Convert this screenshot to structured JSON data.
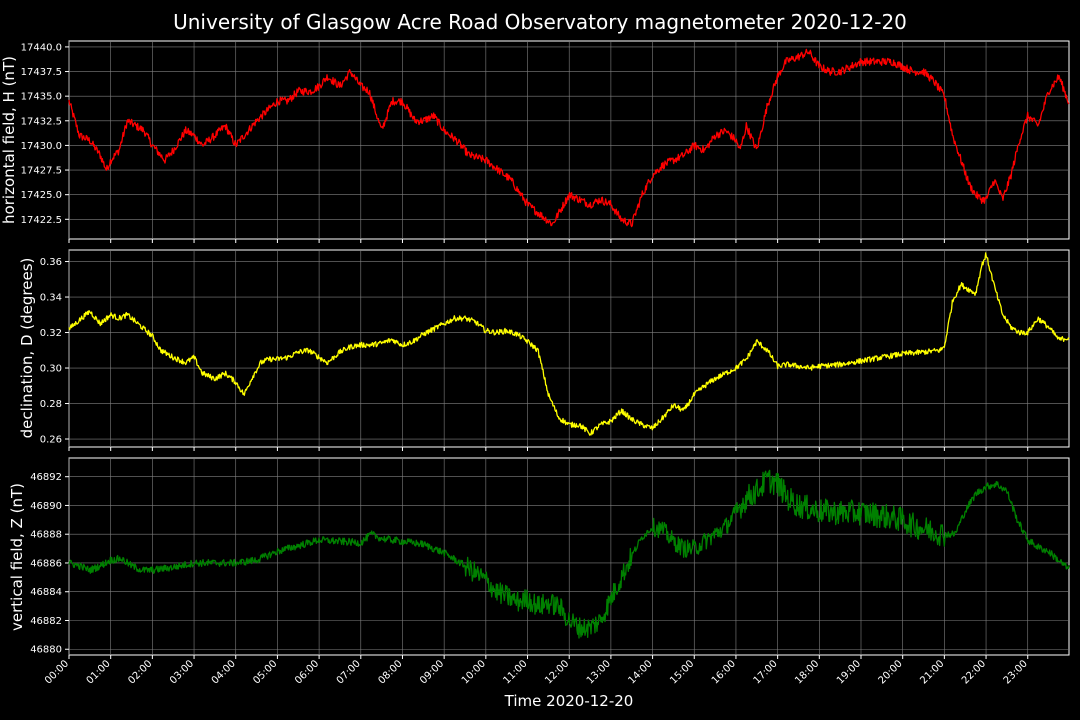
{
  "figure": {
    "title": "University of Glasgow Acre Road Observatory magnetometer 2020-12-20",
    "xlabel": "Time 2020-12-20",
    "background": "#000000",
    "foreground": "#ffffff",
    "grid_color": "#808080"
  },
  "chart_data": [
    {
      "type": "line",
      "name": "horizontal",
      "ylabel": "horizontal field, H (nT)",
      "color": "#ff0000",
      "ylim": [
        17420.5,
        17440.6
      ],
      "yticks": [
        17422.5,
        17425.0,
        17427.5,
        17430.0,
        17432.5,
        17435.0,
        17437.5,
        17440.0
      ],
      "ytick_labels": [
        "17422.5",
        "17425.0",
        "17427.5",
        "17430.0",
        "17432.5",
        "17435.0",
        "17437.5",
        "17440.0"
      ],
      "noise": 0.4,
      "x": [
        0.0,
        0.25,
        0.5,
        0.75,
        0.9,
        1.0,
        1.2,
        1.4,
        1.6,
        1.8,
        2.0,
        2.3,
        2.5,
        2.8,
        3.0,
        3.2,
        3.5,
        3.75,
        4.0,
        4.3,
        4.5,
        4.75,
        5.0,
        5.25,
        5.5,
        5.8,
        6.0,
        6.2,
        6.5,
        6.75,
        7.0,
        7.2,
        7.5,
        7.75,
        8.0,
        8.3,
        8.5,
        8.75,
        9.0,
        9.3,
        9.6,
        10.0,
        10.3,
        10.6,
        11.0,
        11.3,
        11.6,
        11.8,
        12.0,
        12.25,
        12.5,
        12.75,
        13.0,
        13.25,
        13.5,
        13.75,
        14.0,
        14.25,
        14.5,
        14.75,
        15.0,
        15.25,
        15.5,
        15.75,
        16.0,
        16.1,
        16.25,
        16.5,
        16.75,
        17.0,
        17.2,
        17.5,
        17.75,
        18.0,
        18.25,
        18.5,
        18.75,
        19.0,
        19.25,
        19.5,
        19.75,
        20.0,
        20.25,
        20.5,
        20.75,
        21.0,
        21.2,
        21.4,
        21.6,
        21.75,
        21.9,
        22.0,
        22.2,
        22.4,
        22.6,
        22.8,
        23.0,
        23.25,
        23.5,
        23.75,
        23.97
      ],
      "y": [
        17434.5,
        17431.0,
        17430.5,
        17429.0,
        17427.5,
        17428.5,
        17429.5,
        17432.5,
        17432.0,
        17431.5,
        17430.0,
        17428.5,
        17429.5,
        17431.5,
        17431.0,
        17430.0,
        17431.0,
        17432.0,
        17430.0,
        17431.5,
        17432.5,
        17433.5,
        17434.5,
        17434.5,
        17435.5,
        17435.5,
        17436.0,
        17437.0,
        17436.0,
        17437.5,
        17436.0,
        17435.5,
        17431.5,
        17434.5,
        17434.5,
        17432.5,
        17432.5,
        17433.0,
        17431.5,
        17430.5,
        17429.0,
        17428.5,
        17427.5,
        17426.5,
        17424.0,
        17423.0,
        17422.0,
        17423.5,
        17425.0,
        17424.5,
        17424.0,
        17424.5,
        17424.0,
        17422.5,
        17422.0,
        17425.0,
        17427.0,
        17428.0,
        17428.5,
        17429.0,
        17430.0,
        17429.5,
        17431.0,
        17431.5,
        17430.5,
        17429.5,
        17432.0,
        17429.5,
        17434.0,
        17437.0,
        17438.5,
        17439.0,
        17439.5,
        17438.0,
        17437.5,
        17437.5,
        17438.0,
        17438.5,
        17438.5,
        17438.5,
        17438.5,
        17438.0,
        17437.5,
        17437.5,
        17436.5,
        17435.0,
        17431.0,
        17428.5,
        17426.0,
        17425.0,
        17424.5,
        17424.5,
        17426.5,
        17424.5,
        17427.0,
        17430.5,
        17433.0,
        17432.0,
        17435.5,
        17437.0,
        17434.5
      ]
    },
    {
      "type": "line",
      "name": "declination",
      "ylabel": "declination, D (degrees)",
      "color": "#ffff00",
      "ylim": [
        0.2555,
        0.3665
      ],
      "yticks": [
        0.26,
        0.28,
        0.3,
        0.32,
        0.34,
        0.36
      ],
      "ytick_labels": [
        "0.26",
        "0.28",
        "0.30",
        "0.32",
        "0.34",
        "0.36"
      ],
      "noise": 0.0015,
      "x": [
        0.0,
        0.25,
        0.5,
        0.75,
        1.0,
        1.2,
        1.4,
        1.6,
        1.8,
        2.0,
        2.2,
        2.5,
        2.8,
        3.0,
        3.2,
        3.5,
        3.75,
        4.0,
        4.2,
        4.4,
        4.6,
        4.8,
        5.0,
        5.25,
        5.5,
        5.75,
        6.0,
        6.2,
        6.5,
        6.75,
        7.0,
        7.25,
        7.5,
        7.75,
        8.0,
        8.25,
        8.5,
        8.75,
        9.0,
        9.25,
        9.5,
        9.75,
        10.0,
        10.25,
        10.5,
        10.75,
        11.0,
        11.25,
        11.5,
        11.75,
        12.0,
        12.25,
        12.5,
        12.75,
        13.0,
        13.25,
        13.5,
        13.75,
        14.0,
        14.25,
        14.5,
        14.75,
        15.0,
        15.25,
        15.5,
        15.75,
        16.0,
        16.25,
        16.5,
        16.75,
        17.0,
        17.25,
        17.5,
        17.75,
        18.0,
        18.5,
        19.0,
        19.5,
        20.0,
        20.5,
        20.9,
        21.0,
        21.2,
        21.4,
        21.6,
        21.75,
        21.9,
        22.0,
        22.2,
        22.4,
        22.6,
        22.8,
        23.0,
        23.25,
        23.5,
        23.75,
        23.97
      ],
      "y": [
        0.322,
        0.327,
        0.332,
        0.325,
        0.33,
        0.328,
        0.33,
        0.326,
        0.322,
        0.318,
        0.31,
        0.306,
        0.303,
        0.306,
        0.297,
        0.294,
        0.297,
        0.292,
        0.285,
        0.295,
        0.303,
        0.305,
        0.305,
        0.306,
        0.309,
        0.31,
        0.306,
        0.303,
        0.309,
        0.312,
        0.313,
        0.313,
        0.314,
        0.316,
        0.313,
        0.315,
        0.319,
        0.322,
        0.325,
        0.328,
        0.328,
        0.326,
        0.321,
        0.32,
        0.321,
        0.319,
        0.315,
        0.31,
        0.285,
        0.272,
        0.268,
        0.268,
        0.263,
        0.268,
        0.27,
        0.276,
        0.271,
        0.268,
        0.266,
        0.272,
        0.279,
        0.276,
        0.285,
        0.29,
        0.294,
        0.297,
        0.3,
        0.305,
        0.315,
        0.31,
        0.301,
        0.302,
        0.301,
        0.3,
        0.301,
        0.302,
        0.304,
        0.306,
        0.308,
        0.309,
        0.31,
        0.312,
        0.338,
        0.347,
        0.344,
        0.342,
        0.358,
        0.364,
        0.346,
        0.33,
        0.323,
        0.32,
        0.32,
        0.328,
        0.323,
        0.316,
        0.317
      ]
    },
    {
      "type": "line",
      "name": "vertical",
      "ylabel": "vertical field, Z (nT)",
      "color": "#008000",
      "ylim": [
        46879.6,
        46893.3
      ],
      "yticks": [
        46880,
        46882,
        46884,
        46886,
        46888,
        46890,
        46892
      ],
      "ytick_labels": [
        "46880",
        "46882",
        "46884",
        "46886",
        "46888",
        "46890",
        "46892"
      ],
      "noise": 0.25,
      "noise_boost": [
        [
          9.5,
          13.5,
          3.0
        ],
        [
          14.0,
          16.0,
          2.5
        ],
        [
          16.0,
          21.0,
          3.5
        ]
      ],
      "x": [
        0.0,
        0.25,
        0.5,
        0.75,
        1.0,
        1.25,
        1.5,
        1.75,
        2.0,
        2.5,
        3.0,
        3.5,
        4.0,
        4.5,
        5.0,
        5.5,
        6.0,
        6.5,
        7.0,
        7.25,
        7.5,
        8.0,
        8.5,
        9.0,
        9.5,
        10.0,
        10.25,
        10.5,
        10.75,
        11.0,
        11.25,
        11.5,
        11.75,
        12.0,
        12.25,
        12.5,
        12.75,
        13.0,
        13.25,
        13.5,
        13.75,
        14.0,
        14.25,
        14.5,
        14.75,
        15.0,
        15.25,
        15.5,
        15.75,
        16.0,
        16.25,
        16.5,
        16.75,
        17.0,
        17.25,
        17.5,
        17.75,
        18.0,
        18.5,
        19.0,
        19.5,
        20.0,
        20.25,
        20.5,
        20.75,
        21.0,
        21.25,
        21.5,
        21.75,
        22.0,
        22.25,
        22.5,
        22.75,
        23.0,
        23.25,
        23.5,
        23.97
      ],
      "y": [
        46886.0,
        46885.8,
        46885.5,
        46885.8,
        46886.2,
        46886.3,
        46885.8,
        46885.5,
        46885.5,
        46885.7,
        46886.0,
        46886.0,
        46886.0,
        46886.2,
        46886.8,
        46887.2,
        46887.6,
        46887.5,
        46887.4,
        46888.0,
        46887.7,
        46887.5,
        46887.3,
        46886.7,
        46885.8,
        46884.8,
        46884.0,
        46883.7,
        46883.3,
        46883.5,
        46883.0,
        46883.2,
        46883.0,
        46882.0,
        46881.5,
        46881.5,
        46882.0,
        46883.5,
        46885.0,
        46886.5,
        46887.8,
        46888.5,
        46888.3,
        46887.5,
        46887.0,
        46887.0,
        46887.5,
        46888.0,
        46888.5,
        46889.5,
        46890.5,
        46891.0,
        46891.8,
        46891.5,
        46890.5,
        46890.0,
        46889.8,
        46889.6,
        46889.5,
        46889.5,
        46889.3,
        46889.0,
        46888.6,
        46888.4,
        46888.2,
        46888.0,
        46888.0,
        46889.6,
        46890.8,
        46891.3,
        46891.5,
        46891.0,
        46889.0,
        46887.6,
        46887.1,
        46886.8,
        46885.6
      ]
    }
  ],
  "xaxis": {
    "range": [
      0.0,
      23.99
    ],
    "tick_labels": [
      "00:00",
      "01:00",
      "02:00",
      "03:00",
      "04:00",
      "05:00",
      "06:00",
      "07:00",
      "08:00",
      "09:00",
      "10:00",
      "11:00",
      "12:00",
      "13:00",
      "14:00",
      "15:00",
      "16:00",
      "17:00",
      "18:00",
      "19:00",
      "20:00",
      "21:00",
      "22:00",
      "23:00"
    ]
  }
}
